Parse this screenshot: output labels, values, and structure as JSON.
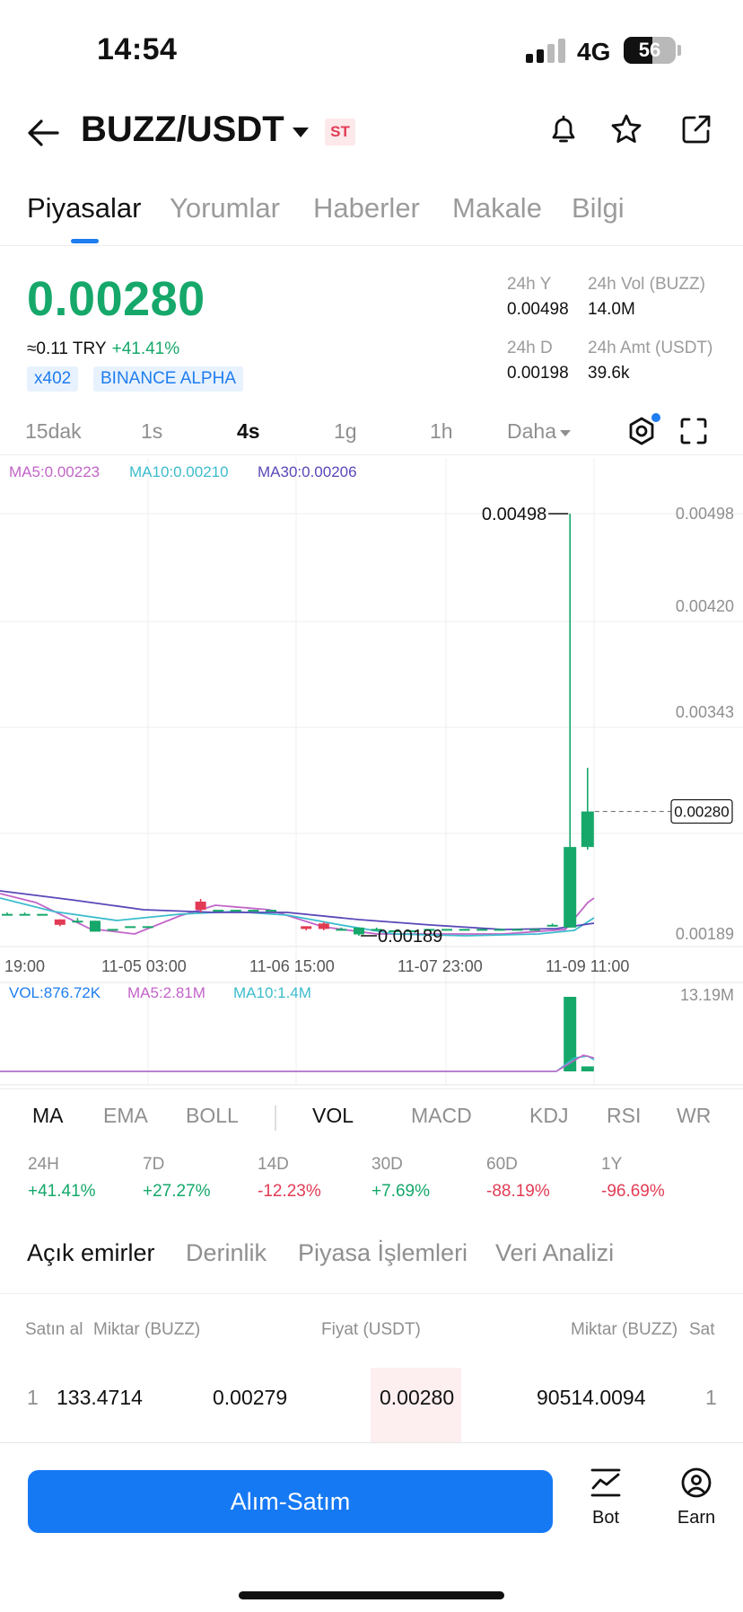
{
  "status": {
    "time": "14:54",
    "network": "4G",
    "battery": "56"
  },
  "header": {
    "pair": "BUZZ/USDT",
    "badge": "ST"
  },
  "tabs": [
    "Piyasalar",
    "Yorumlar",
    "Haberler",
    "Makale",
    "Bilgi"
  ],
  "price": {
    "last": "0.00280",
    "fiat": "≈0.11 TRY",
    "change": "+41.41%",
    "tags": [
      "x402",
      "BINANCE ALPHA"
    ]
  },
  "stats": {
    "high_label": "24h Y",
    "high": "0.00498",
    "vol_label": "24h Vol (BUZZ)",
    "vol": "14.0M",
    "low_label": "24h D",
    "low": "0.00198",
    "amt_label": "24h Amt (USDT)",
    "amt": "39.6k"
  },
  "intervals": [
    "15dak",
    "1s",
    "4s",
    "1g",
    "1h",
    "Daha"
  ],
  "colors": {
    "up": "#15a86a",
    "down": "#e23c55",
    "accent": "#1e7df0",
    "ma5": "#c264c8",
    "ma10": "#3cbccd",
    "ma30": "#5a47b8"
  },
  "chart_data": {
    "type": "candlestick",
    "price_axis_ticks": [
      "0.00498",
      "0.00420",
      "0.00343",
      "0.00280",
      "0.00189"
    ],
    "time_axis_ticks": [
      "19:00",
      "11-05 03:00",
      "11-06 15:00",
      "11-07 23:00",
      "11-09 11:00"
    ],
    "max_label": "0.00498",
    "min_label": "0.00189",
    "last_price_label": "0.00280",
    "ylim": [
      0.00189,
      0.00498
    ],
    "ma_legend": {
      "ma5": "MA5:0.00223",
      "ma10": "MA10:0.00210",
      "ma30": "MA30:0.00206"
    },
    "candles": [
      {
        "i": 0,
        "open": 0.00205,
        "close": 0.00205,
        "high": 0.00206,
        "low": 0.00204
      },
      {
        "i": 1,
        "open": 0.00205,
        "close": 0.00205,
        "high": 0.00206,
        "low": 0.00204
      },
      {
        "i": 2,
        "open": 0.00205,
        "close": 0.00205,
        "high": 0.00205,
        "low": 0.00205
      },
      {
        "i": 3,
        "open": 0.00201,
        "close": 0.00197,
        "high": 0.00201,
        "low": 0.00196
      },
      {
        "i": 4,
        "open": 0.002,
        "close": 0.002,
        "high": 0.00202,
        "low": 0.00199
      },
      {
        "i": 5,
        "open": 0.00192,
        "close": 0.002,
        "high": 0.002,
        "low": 0.00192
      },
      {
        "i": 6,
        "open": 0.00194,
        "close": 0.00194,
        "high": 0.00194,
        "low": 0.00194
      },
      {
        "i": 7,
        "open": 0.00196,
        "close": 0.00196,
        "high": 0.00196,
        "low": 0.00196
      },
      {
        "i": 8,
        "open": 0.00196,
        "close": 0.00196,
        "high": 0.00196,
        "low": 0.00196
      },
      {
        "i": 11,
        "open": 0.00214,
        "close": 0.00208,
        "high": 0.00216,
        "low": 0.00206
      },
      {
        "i": 12,
        "open": 0.00208,
        "close": 0.00208,
        "high": 0.00208,
        "low": 0.00208
      },
      {
        "i": 13,
        "open": 0.00208,
        "close": 0.00208,
        "high": 0.00208,
        "low": 0.00208
      },
      {
        "i": 14,
        "open": 0.00208,
        "close": 0.00208,
        "high": 0.00208,
        "low": 0.00208
      },
      {
        "i": 15,
        "open": 0.00208,
        "close": 0.00208,
        "high": 0.00208,
        "low": 0.00208
      },
      {
        "i": 17,
        "open": 0.00196,
        "close": 0.00194,
        "high": 0.00196,
        "low": 0.00193
      },
      {
        "i": 18,
        "open": 0.00198,
        "close": 0.00194,
        "high": 0.00199,
        "low": 0.00193
      },
      {
        "i": 19,
        "open": 0.00194,
        "close": 0.00194,
        "high": 0.00195,
        "low": 0.00193
      },
      {
        "i": 20,
        "open": 0.0019,
        "close": 0.00195,
        "high": 0.00195,
        "low": 0.00189
      },
      {
        "i": 21,
        "open": 0.00194,
        "close": 0.00194,
        "high": 0.00195,
        "low": 0.00193
      },
      {
        "i": 22,
        "open": 0.00193,
        "close": 0.00193,
        "high": 0.00193,
        "low": 0.00193
      },
      {
        "i": 23,
        "open": 0.00193,
        "close": 0.00193,
        "high": 0.00193,
        "low": 0.00193
      },
      {
        "i": 24,
        "open": 0.00194,
        "close": 0.00194,
        "high": 0.00194,
        "low": 0.00194
      },
      {
        "i": 25,
        "open": 0.00194,
        "close": 0.00194,
        "high": 0.00194,
        "low": 0.00194
      },
      {
        "i": 26,
        "open": 0.00194,
        "close": 0.00194,
        "high": 0.00194,
        "low": 0.00194
      },
      {
        "i": 27,
        "open": 0.00194,
        "close": 0.00194,
        "high": 0.00194,
        "low": 0.00194
      },
      {
        "i": 28,
        "open": 0.00194,
        "close": 0.00194,
        "high": 0.00194,
        "low": 0.00194
      },
      {
        "i": 29,
        "open": 0.00194,
        "close": 0.00194,
        "high": 0.00194,
        "low": 0.00194
      },
      {
        "i": 30,
        "open": 0.00194,
        "close": 0.00194,
        "high": 0.00194,
        "low": 0.00194
      },
      {
        "i": 31,
        "open": 0.00197,
        "close": 0.00197,
        "high": 0.00198,
        "low": 0.00196
      },
      {
        "i": 32,
        "open": 0.00195,
        "close": 0.00254,
        "high": 0.00498,
        "low": 0.00195
      },
      {
        "i": 33,
        "open": 0.00254,
        "close": 0.0028,
        "high": 0.00312,
        "low": 0.00252
      }
    ],
    "volume": {
      "max_label": "13.19M",
      "legend": {
        "vol": "VOL:876.72K",
        "ma5": "MA5:2.81M",
        "ma10": "MA10:1.4M"
      },
      "bars": [
        {
          "i": 32,
          "value": 13.19
        },
        {
          "i": 33,
          "value": 0.88
        }
      ]
    }
  },
  "indicators": [
    "MA",
    "EMA",
    "BOLL",
    "VOL",
    "MACD",
    "KDJ",
    "RSI",
    "WR"
  ],
  "performance": [
    {
      "label": "24H",
      "value": "+41.41%",
      "dir": "up"
    },
    {
      "label": "7D",
      "value": "+27.27%",
      "dir": "up"
    },
    {
      "label": "14D",
      "value": "-12.23%",
      "dir": "down"
    },
    {
      "label": "30D",
      "value": "+7.69%",
      "dir": "up"
    },
    {
      "label": "60D",
      "value": "-88.19%",
      "dir": "down"
    },
    {
      "label": "1Y",
      "value": "-96.69%",
      "dir": "down"
    }
  ],
  "order_tabs": [
    "Açık emirler",
    "Derinlik",
    "Piyasa İşlemleri",
    "Veri Analizi"
  ],
  "orderbook": {
    "headers": {
      "buy": "Satın al",
      "amount_left": "Miktar (BUZZ)",
      "price": "Fiyat (USDT)",
      "amount_right": "Miktar (BUZZ)",
      "sell": "Sat"
    },
    "rows": [
      {
        "idx_left": "1",
        "bid_amount": "133.4714",
        "bid_price": "0.00279",
        "ask_price": "0.00280",
        "ask_amount": "90514.0094",
        "idx_right": "1"
      }
    ]
  },
  "bottom": {
    "trade": "Alım-Satım",
    "bot": "Bot",
    "earn": "Earn"
  }
}
